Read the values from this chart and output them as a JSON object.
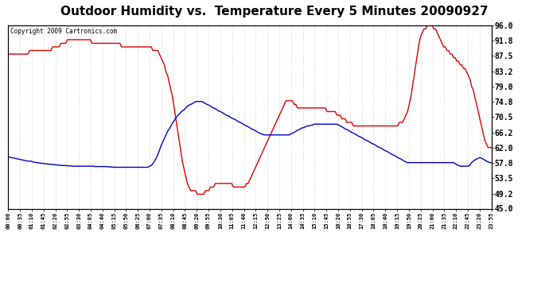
{
  "title": "Outdoor Humidity vs.  Temperature Every 5 Minutes 20090927",
  "copyright_text": "Copyright 2009 Cartronics.com",
  "y_right_ticks": [
    45.0,
    49.2,
    53.5,
    57.8,
    62.0,
    66.2,
    70.5,
    74.8,
    79.0,
    83.2,
    87.5,
    91.8,
    96.0
  ],
  "ylim": [
    45.0,
    96.0
  ],
  "background_color": "#ffffff",
  "grid_color": "#bbbbbb",
  "title_fontsize": 11,
  "line_width": 1.0,
  "red_color": "#dd0000",
  "blue_color": "#0000cc",
  "humidity_data": [
    88,
    88,
    88,
    88,
    88,
    88,
    88,
    88,
    88,
    88,
    88,
    88,
    88,
    89,
    89,
    89,
    89,
    89,
    89,
    89,
    89,
    89,
    89,
    89,
    89,
    89,
    89,
    90,
    90,
    90,
    90,
    90,
    91,
    91,
    91,
    91,
    92,
    92,
    92,
    92,
    92,
    92,
    92,
    92,
    92,
    92,
    92,
    92,
    92,
    92,
    92,
    91,
    91,
    91,
    91,
    91,
    91,
    91,
    91,
    91,
    91,
    91,
    91,
    91,
    91,
    91,
    91,
    91,
    91,
    90,
    90,
    90,
    90,
    90,
    90,
    90,
    90,
    90,
    90,
    90,
    90,
    90,
    90,
    90,
    90,
    90,
    90,
    90,
    89,
    89,
    89,
    89,
    88,
    87,
    86,
    85,
    83,
    82,
    80,
    78,
    76,
    73,
    70,
    67,
    64,
    61,
    58,
    56,
    54,
    52,
    51,
    50,
    50,
    50,
    50,
    49,
    49,
    49,
    49,
    49,
    50,
    50,
    50,
    51,
    51,
    51,
    52,
    52,
    52,
    52,
    52,
    52,
    52,
    52,
    52,
    52,
    52,
    51,
    51,
    51,
    51,
    51,
    51,
    51,
    51,
    52,
    52,
    53,
    54,
    55,
    56,
    57,
    58,
    59,
    60,
    61,
    62,
    63,
    64,
    65,
    66,
    67,
    68,
    69,
    70,
    71,
    72,
    73,
    74,
    75,
    75,
    75,
    75,
    75,
    74,
    74,
    73,
    73,
    73,
    73,
    73,
    73,
    73,
    73,
    73,
    73,
    73,
    73,
    73,
    73,
    73,
    73,
    73,
    73,
    72,
    72,
    72,
    72,
    72,
    72,
    71,
    71,
    71,
    70,
    70,
    70,
    69,
    69,
    69,
    69,
    68,
    68,
    68,
    68,
    68,
    68,
    68,
    68,
    68,
    68,
    68,
    68,
    68,
    68,
    68,
    68,
    68,
    68,
    68,
    68,
    68,
    68,
    68,
    68,
    68,
    68,
    68,
    68,
    69,
    69,
    69,
    70,
    71,
    72,
    74,
    76,
    79,
    82,
    85,
    88,
    91,
    93,
    94,
    95,
    95,
    96,
    96,
    96,
    96,
    95,
    95,
    94,
    93,
    92,
    91,
    90,
    90,
    89,
    89,
    88,
    88,
    87,
    87,
    86,
    86,
    85,
    85,
    84,
    84,
    83,
    82,
    81,
    79,
    78,
    76,
    74,
    72,
    70,
    68,
    66,
    64,
    63,
    62,
    62,
    62
  ],
  "temperature_data": [
    59.5,
    59.3,
    59.2,
    59.1,
    59.0,
    58.9,
    58.8,
    58.7,
    58.6,
    58.5,
    58.4,
    58.3,
    58.2,
    58.2,
    58.2,
    58.0,
    57.9,
    57.8,
    57.8,
    57.7,
    57.6,
    57.6,
    57.5,
    57.5,
    57.4,
    57.4,
    57.3,
    57.3,
    57.2,
    57.2,
    57.1,
    57.1,
    57.0,
    57.0,
    57.0,
    57.0,
    56.9,
    56.9,
    56.9,
    56.8,
    56.8,
    56.8,
    56.8,
    56.8,
    56.8,
    56.8,
    56.8,
    56.8,
    56.8,
    56.8,
    56.8,
    56.8,
    56.8,
    56.7,
    56.7,
    56.7,
    56.7,
    56.7,
    56.7,
    56.7,
    56.7,
    56.6,
    56.6,
    56.6,
    56.5,
    56.5,
    56.5,
    56.5,
    56.5,
    56.5,
    56.5,
    56.5,
    56.5,
    56.5,
    56.5,
    56.5,
    56.5,
    56.5,
    56.5,
    56.5,
    56.5,
    56.5,
    56.5,
    56.5,
    56.5,
    56.5,
    56.8,
    57.0,
    57.5,
    58.2,
    59.0,
    60.0,
    61.2,
    62.5,
    63.5,
    64.5,
    65.5,
    66.5,
    67.2,
    68.0,
    68.8,
    69.5,
    70.2,
    70.8,
    71.3,
    71.8,
    72.2,
    72.5,
    73.0,
    73.5,
    73.8,
    74.0,
    74.2,
    74.5,
    74.8,
    74.8,
    74.8,
    74.8,
    74.8,
    74.5,
    74.2,
    74.0,
    73.8,
    73.5,
    73.2,
    73.0,
    72.8,
    72.5,
    72.2,
    72.0,
    71.8,
    71.5,
    71.2,
    71.0,
    70.8,
    70.5,
    70.2,
    70.0,
    69.8,
    69.5,
    69.2,
    69.0,
    68.8,
    68.5,
    68.2,
    68.0,
    67.8,
    67.5,
    67.2,
    67.0,
    66.8,
    66.5,
    66.2,
    66.0,
    65.8,
    65.6,
    65.5,
    65.5,
    65.5,
    65.5,
    65.5,
    65.5,
    65.5,
    65.5,
    65.5,
    65.5,
    65.5,
    65.5,
    65.5,
    65.5,
    65.5,
    65.5,
    65.8,
    66.0,
    66.2,
    66.5,
    66.8,
    67.0,
    67.2,
    67.5,
    67.5,
    67.8,
    68.0,
    68.0,
    68.2,
    68.2,
    68.5,
    68.5,
    68.5,
    68.5,
    68.5,
    68.5,
    68.5,
    68.5,
    68.5,
    68.5,
    68.5,
    68.5,
    68.5,
    68.5,
    68.5,
    68.3,
    68.0,
    67.8,
    67.5,
    67.2,
    67.0,
    66.8,
    66.5,
    66.2,
    66.0,
    65.8,
    65.5,
    65.2,
    65.0,
    64.8,
    64.5,
    64.2,
    64.0,
    63.8,
    63.5,
    63.2,
    63.0,
    62.8,
    62.5,
    62.2,
    62.0,
    61.8,
    61.5,
    61.2,
    61.0,
    60.8,
    60.5,
    60.2,
    60.0,
    59.8,
    59.5,
    59.2,
    59.0,
    58.8,
    58.5,
    58.2,
    58.0,
    57.8,
    57.8,
    57.8,
    57.8,
    57.8,
    57.8,
    57.8,
    57.8,
    57.8,
    57.8,
    57.8,
    57.8,
    57.8,
    57.8,
    57.8,
    57.8,
    57.8,
    57.8,
    57.8,
    57.8,
    57.8,
    57.8,
    57.8,
    57.8,
    57.8,
    57.8,
    57.8,
    57.8,
    57.8,
    57.5,
    57.2,
    57.0,
    56.8,
    56.8,
    56.8,
    56.8,
    56.8,
    56.8,
    57.2,
    57.8,
    58.2,
    58.5,
    58.8,
    59.0,
    59.2,
    59.0,
    58.8,
    58.5,
    58.2,
    58.0,
    57.8,
    57.8
  ],
  "x_tick_labels": [
    "00:00",
    "00:35",
    "01:10",
    "01:45",
    "02:20",
    "02:55",
    "03:30",
    "04:05",
    "04:40",
    "05:15",
    "05:50",
    "06:25",
    "07:00",
    "07:35",
    "08:10",
    "08:45",
    "09:20",
    "09:55",
    "10:30",
    "11:05",
    "11:40",
    "12:15",
    "12:50",
    "13:25",
    "14:00",
    "14:35",
    "15:10",
    "15:45",
    "16:20",
    "16:55",
    "17:30",
    "18:05",
    "18:40",
    "19:15",
    "19:50",
    "20:25",
    "21:00",
    "21:35",
    "22:10",
    "22:45",
    "23:20",
    "23:55"
  ],
  "n_points": 295
}
